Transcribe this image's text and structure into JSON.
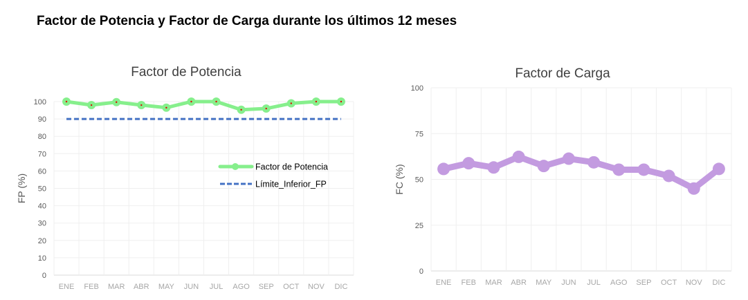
{
  "title": "Factor de Potencia y Factor de Carga durante los últimos 12 meses",
  "chart_data": [
    {
      "type": "line",
      "title": "Factor de Potencia",
      "xlabel": "",
      "ylabel": "FP (%)",
      "categories": [
        "ENE",
        "FEB",
        "MAR",
        "ABR",
        "MAY",
        "JUN",
        "JUL",
        "AGO",
        "SEP",
        "OCT",
        "NOV",
        "DIC"
      ],
      "ylim": [
        0,
        100
      ],
      "yticks": [
        0,
        10,
        20,
        30,
        40,
        50,
        60,
        70,
        80,
        90,
        100
      ],
      "grid": true,
      "legend": "right",
      "series": [
        {
          "name": "Factor de Potencia",
          "values": [
            100,
            98,
            99.7,
            98,
            96.5,
            100,
            100,
            95.3,
            96,
            99,
            100,
            100
          ],
          "color": "#86ef8c",
          "marker_center": "#e00000",
          "style": "solid"
        },
        {
          "name": "Límite_Inferior_FP",
          "values": [
            90,
            90,
            90,
            90,
            90,
            90,
            90,
            90,
            90,
            90,
            90,
            90
          ],
          "color": "#4472c4",
          "style": "dashed"
        }
      ]
    },
    {
      "type": "line",
      "title": "Factor de Carga",
      "xlabel": "",
      "ylabel": "FC (%)",
      "categories": [
        "ENE",
        "FEB",
        "MAR",
        "ABR",
        "MAY",
        "JUN",
        "JUL",
        "AGO",
        "SEP",
        "OCT",
        "NOV",
        "DIC"
      ],
      "ylim": [
        0,
        100
      ],
      "yticks": [
        0,
        25,
        50,
        75,
        100
      ],
      "grid": true,
      "legend": "none",
      "series": [
        {
          "values": [
            55.7,
            58.8,
            56.5,
            62.3,
            57.3,
            61.3,
            59.3,
            55.3,
            55.3,
            51.9,
            45,
            55.7
          ],
          "color": "#c39be0",
          "style": "solid"
        }
      ]
    }
  ]
}
